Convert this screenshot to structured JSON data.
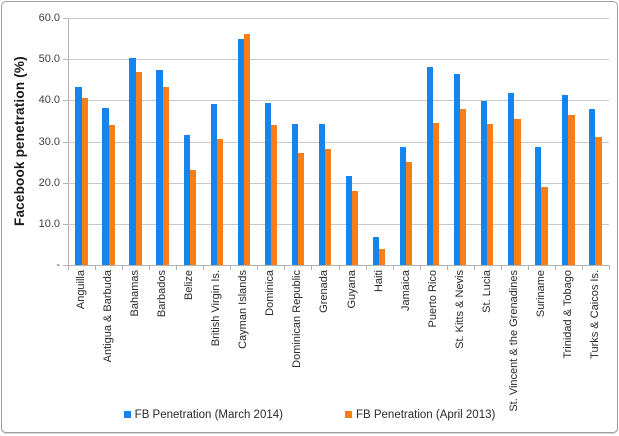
{
  "chart_data": {
    "type": "bar",
    "title": "",
    "xlabel": "",
    "ylabel": "Facebook penetration (%)",
    "ylim": [
      0,
      60
    ],
    "grid": true,
    "legend_position": "bottom",
    "gridline_step": 10,
    "y_ticks": [
      {
        "label": "60.0",
        "value": 60
      },
      {
        "label": "50.0",
        "value": 50
      },
      {
        "label": "40.0",
        "value": 40
      },
      {
        "label": "30.0",
        "value": 30
      },
      {
        "label": "20.0",
        "value": 20
      },
      {
        "label": "10.0",
        "value": 10
      },
      {
        "label": "-",
        "value": 0
      }
    ],
    "categories": [
      "Anguilla",
      "Antigua & Barbuda",
      "Bahamas",
      "Barbados",
      "Belize",
      "British Virgin Is.",
      "Cayman Islands",
      "Dominica",
      "Dominican Republic",
      "Grenada",
      "Guyana",
      "Haiti",
      "Jamaica",
      "Puerto Rico",
      "St. Kitts & Nevis",
      "St. Lucia",
      "St. Vincent & the Grenadines",
      "Suriname",
      "Trinidad & Tobago",
      "Turks & Caicos Is."
    ],
    "series": [
      {
        "name": "FB Penetration (March 2014)",
        "color": "#1584EC",
        "values": [
          43.3,
          38.2,
          50.3,
          47.3,
          31.5,
          39.1,
          55.0,
          39.3,
          34.2,
          34.2,
          21.6,
          6.7,
          28.7,
          48.0,
          46.3,
          39.8,
          41.7,
          28.7,
          41.2,
          37.8
        ]
      },
      {
        "name": "FB Penetration (April 2013)",
        "color": "#FA7E17",
        "values": [
          40.6,
          33.9,
          47.0,
          43.2,
          23.0,
          30.5,
          56.2,
          34.0,
          27.3,
          28.3,
          18.0,
          3.8,
          25.0,
          34.4,
          37.8,
          34.3,
          35.4,
          19.0,
          36.5,
          31.1
        ]
      }
    ],
    "colors": {
      "gridline": "#c9c9c9",
      "axis": "#b2b2b2",
      "text": "#2a2a2a"
    }
  }
}
